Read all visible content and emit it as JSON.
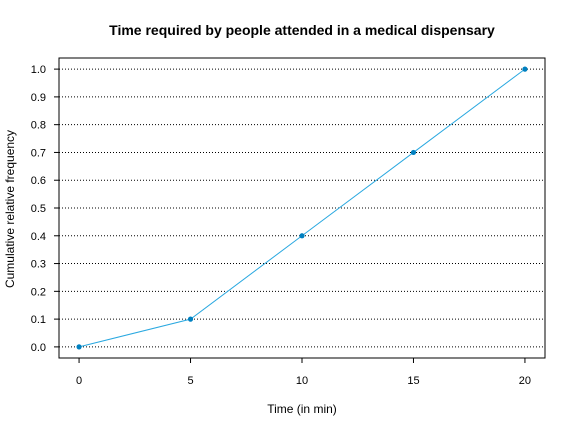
{
  "chart_data": {
    "type": "line",
    "title": "Time required by people attended in a medical dispensary",
    "xlabel": "Time (in min)",
    "ylabel": "Cumulative relative frequency",
    "x": [
      0,
      5,
      10,
      15,
      20
    ],
    "series": [
      {
        "values": [
          0.0,
          0.1,
          0.4,
          0.7,
          1.0
        ]
      }
    ],
    "xlim": [
      -0.9,
      20.9
    ],
    "ylim": [
      -0.04,
      1.04
    ],
    "xticks": [
      "0",
      "5",
      "10",
      "15",
      "20"
    ],
    "yticks": [
      "0.0",
      "0.1",
      "0.2",
      "0.3",
      "0.4",
      "0.5",
      "0.6",
      "0.7",
      "0.8",
      "0.9",
      "1.0"
    ],
    "grid": "horizontal-dotted",
    "colors": {
      "line": "#29a8e0",
      "marker": "#0080c0",
      "grid": "#000000"
    }
  }
}
